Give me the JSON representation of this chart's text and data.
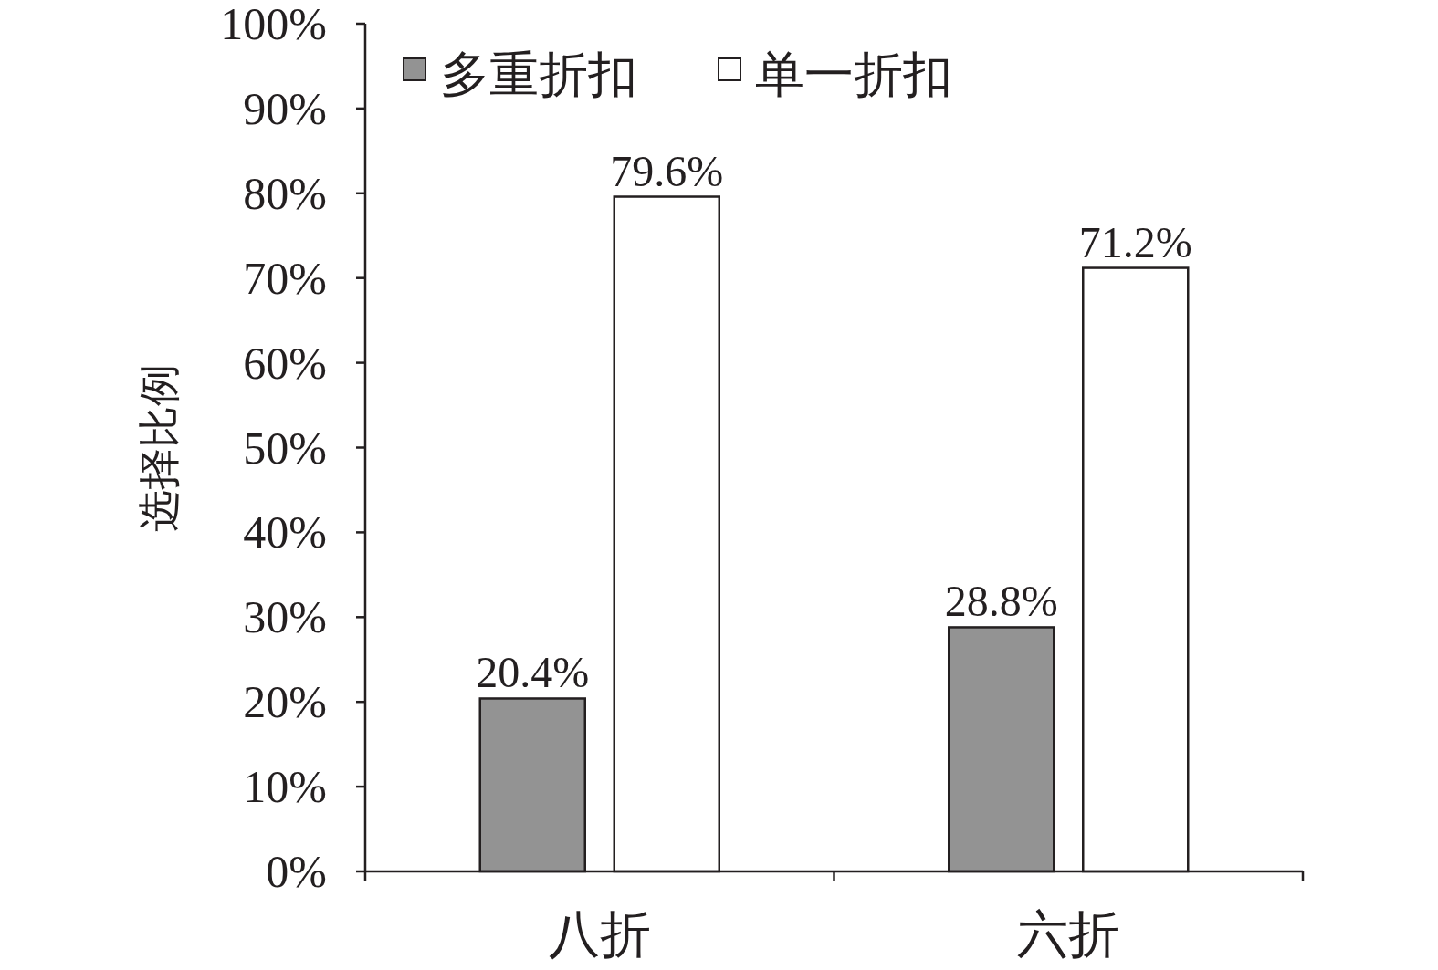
{
  "chart_data": {
    "type": "bar",
    "ylabel": "选择比例",
    "categories": [
      "八折",
      "六折"
    ],
    "series": [
      {
        "name": "多重折扣",
        "color": "#939393",
        "values": [
          20.4,
          28.8
        ],
        "value_labels": [
          "20.4%",
          "28.8%"
        ]
      },
      {
        "name": "单一折扣",
        "color": "#ffffff",
        "values": [
          79.6,
          71.2
        ],
        "value_labels": [
          "79.6%",
          "71.2%"
        ]
      }
    ],
    "ylim": [
      0,
      100
    ],
    "yticks": [
      {
        "value": 0,
        "label": "0%"
      },
      {
        "value": 10,
        "label": "10%"
      },
      {
        "value": 20,
        "label": "20%"
      },
      {
        "value": 30,
        "label": "30%"
      },
      {
        "value": 40,
        "label": "40%"
      },
      {
        "value": 50,
        "label": "50%"
      },
      {
        "value": 60,
        "label": "60%"
      },
      {
        "value": 70,
        "label": "70%"
      },
      {
        "value": 80,
        "label": "80%"
      },
      {
        "value": 90,
        "label": "90%"
      },
      {
        "value": 100,
        "label": "100%"
      }
    ],
    "legend": "top left",
    "grid": false
  }
}
